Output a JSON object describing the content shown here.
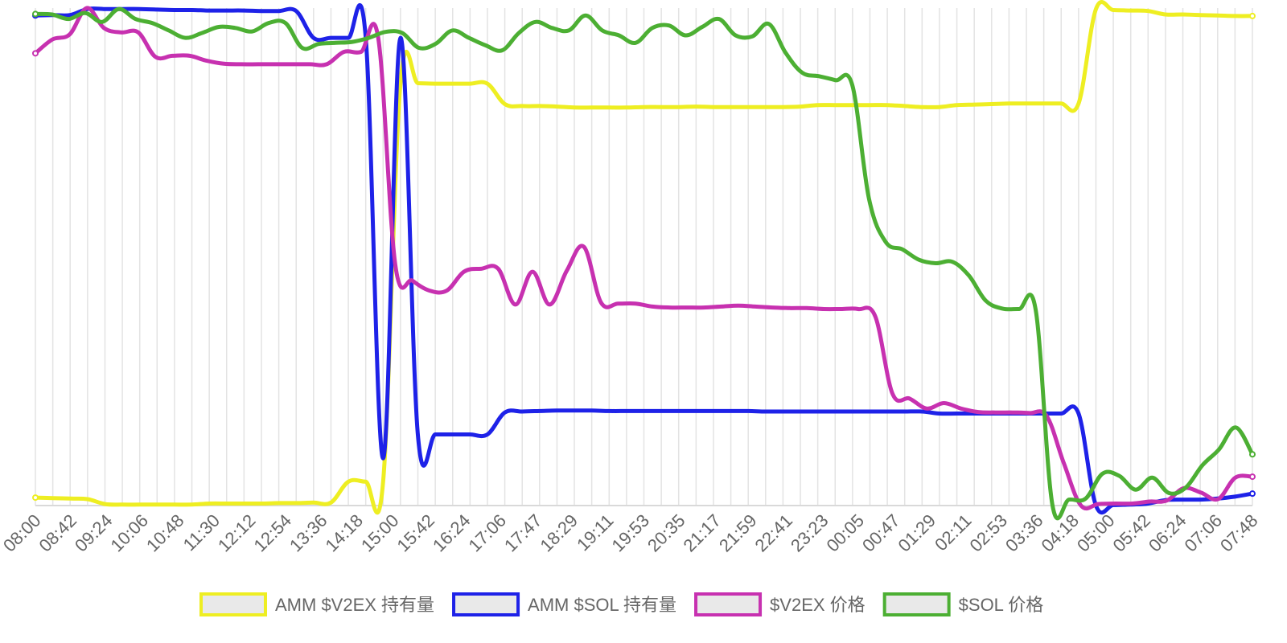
{
  "chart_data": {
    "type": "line",
    "title": "",
    "xlabel": "",
    "ylabel": "",
    "x_tick_labels": [
      "08:00",
      "08:42",
      "09:24",
      "10:06",
      "10:48",
      "11:30",
      "12:12",
      "12:54",
      "13:36",
      "14:18",
      "15:00",
      "15:42",
      "16:24",
      "17:06",
      "17:47",
      "18:29",
      "19:11",
      "19:53",
      "20:35",
      "21:17",
      "21:59",
      "22:41",
      "23:23",
      "00:05",
      "00:47",
      "01:29",
      "02:11",
      "02:53",
      "03:36",
      "04:18",
      "05:00",
      "05:42",
      "06:24",
      "07:06",
      "07:48"
    ],
    "x_range": [
      0,
      70
    ],
    "y_range": [
      0,
      1
    ],
    "y_axis_labels_shown": false,
    "grid": "vertical",
    "legend_position": "bottom",
    "series": [
      {
        "name": "AMM $V2EX 持有量",
        "color": "#eeee22",
        "values": [
          0.016,
          0.015,
          0.014,
          0.013,
          0.003,
          0.002,
          0.002,
          0.002,
          0.002,
          0.002,
          0.004,
          0.004,
          0.004,
          0.004,
          0.005,
          0.005,
          0.006,
          0.006,
          0.048,
          0.048,
          0.048,
          0.85,
          0.849,
          0.848,
          0.848,
          0.848,
          0.848,
          0.807,
          0.803,
          0.803,
          0.802,
          0.8,
          0.8,
          0.8,
          0.8,
          0.801,
          0.801,
          0.801,
          0.802,
          0.801,
          0.801,
          0.801,
          0.801,
          0.801,
          0.802,
          0.805,
          0.805,
          0.805,
          0.805,
          0.805,
          0.803,
          0.801,
          0.801,
          0.805,
          0.806,
          0.807,
          0.808,
          0.808,
          0.808,
          0.808,
          0.808,
          0.998,
          0.996,
          0.995,
          0.994,
          0.987,
          0.987,
          0.986,
          0.985,
          0.984,
          0.984
        ]
      },
      {
        "name": "AMM $SOL 持有量",
        "color": "#1e22e8",
        "values": [
          0.985,
          0.986,
          0.986,
          0.998,
          0.998,
          0.998,
          0.998,
          0.997,
          0.996,
          0.996,
          0.995,
          0.995,
          0.995,
          0.994,
          0.994,
          0.994,
          0.94,
          0.94,
          0.94,
          0.94,
          0.095,
          0.94,
          0.142,
          0.143,
          0.143,
          0.143,
          0.143,
          0.187,
          0.189,
          0.19,
          0.191,
          0.191,
          0.191,
          0.19,
          0.19,
          0.19,
          0.19,
          0.19,
          0.19,
          0.19,
          0.19,
          0.19,
          0.189,
          0.189,
          0.189,
          0.189,
          0.189,
          0.189,
          0.189,
          0.189,
          0.189,
          0.189,
          0.185,
          0.185,
          0.185,
          0.185,
          0.185,
          0.185,
          0.185,
          0.185,
          0.185,
          0.0,
          0.001,
          0.002,
          0.004,
          0.011,
          0.012,
          0.012,
          0.014,
          0.018,
          0.024
        ]
      },
      {
        "name": "$V2EX 价格",
        "color": "#c731b0",
        "values": [
          0.909,
          0.937,
          0.947,
          1.0,
          0.96,
          0.951,
          0.951,
          0.902,
          0.904,
          0.904,
          0.894,
          0.888,
          0.887,
          0.887,
          0.887,
          0.887,
          0.887,
          0.887,
          0.912,
          0.912,
          0.94,
          0.483,
          0.452,
          0.432,
          0.432,
          0.47,
          0.476,
          0.476,
          0.404,
          0.47,
          0.404,
          0.472,
          0.52,
          0.408,
          0.406,
          0.406,
          0.4,
          0.398,
          0.398,
          0.398,
          0.4,
          0.402,
          0.4,
          0.398,
          0.397,
          0.397,
          0.395,
          0.395,
          0.395,
          0.38,
          0.225,
          0.215,
          0.195,
          0.206,
          0.195,
          0.188,
          0.187,
          0.187,
          0.186,
          0.18,
          0.085,
          0.0,
          0.003,
          0.004,
          0.004,
          0.008,
          0.01,
          0.035,
          0.026,
          0.013,
          0.056,
          0.058
        ]
      },
      {
        "name": "$SOL 价格",
        "color": "#4caf33",
        "values": [
          0.988,
          0.987,
          0.978,
          0.99,
          0.972,
          0.998,
          0.978,
          0.97,
          0.955,
          0.94,
          0.95,
          0.962,
          0.96,
          0.953,
          0.97,
          0.97,
          0.92,
          0.928,
          0.93,
          0.932,
          0.94,
          0.952,
          0.95,
          0.92,
          0.928,
          0.955,
          0.94,
          0.925,
          0.915,
          0.95,
          0.972,
          0.96,
          0.955,
          0.985,
          0.955,
          0.945,
          0.93,
          0.96,
          0.965,
          0.945,
          0.962,
          0.978,
          0.945,
          0.943,
          0.968,
          0.91,
          0.87,
          0.863,
          0.855,
          0.845,
          0.617,
          0.53,
          0.515,
          0.494,
          0.487,
          0.49,
          0.462,
          0.412,
          0.396,
          0.395,
          0.393,
          0.002,
          0.012,
          0.014,
          0.064,
          0.06,
          0.032,
          0.056,
          0.025,
          0.036,
          0.081,
          0.113,
          0.157,
          0.103
        ]
      }
    ]
  }
}
